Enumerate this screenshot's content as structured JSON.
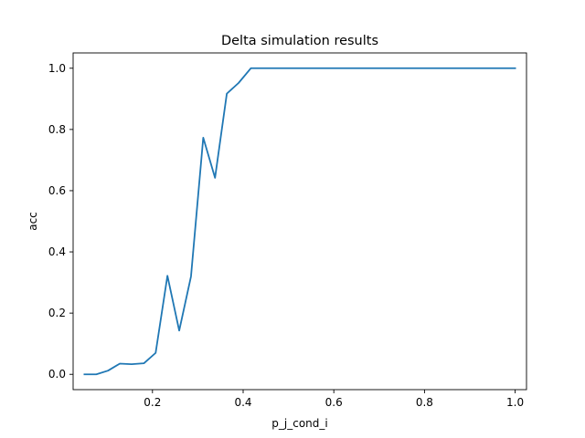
{
  "chart_data": {
    "type": "line",
    "title": "Delta simulation results",
    "xlabel": "p_j_cond_i",
    "ylabel": "acc",
    "xlim": [
      0.025,
      1.025
    ],
    "ylim": [
      -0.05,
      1.05
    ],
    "xticks": [
      0.2,
      0.4,
      0.6,
      0.8,
      1.0
    ],
    "xtick_labels": [
      "0.2",
      "0.4",
      "0.6",
      "0.8",
      "1.0"
    ],
    "yticks": [
      0.0,
      0.2,
      0.4,
      0.6,
      0.8,
      1.0
    ],
    "ytick_labels": [
      "0.0",
      "0.2",
      "0.4",
      "0.6",
      "0.8",
      "1.0"
    ],
    "grid": false,
    "line_color": "#1f77b4",
    "series": [
      {
        "x": [
          0.05,
          0.076,
          0.102,
          0.128,
          0.154,
          0.181,
          0.207,
          0.233,
          0.259,
          0.285,
          0.312,
          0.338,
          0.364,
          0.39,
          0.417,
          0.443,
          0.469,
          0.495,
          0.521,
          0.547,
          0.574,
          0.6,
          0.626,
          0.652,
          0.678,
          0.705,
          0.731,
          0.757,
          0.783,
          0.809,
          0.836,
          0.862,
          0.888,
          0.914,
          0.94,
          0.967,
          1.0
        ],
        "y": [
          0.0,
          0.0,
          0.012,
          0.035,
          0.033,
          0.036,
          0.07,
          0.322,
          0.143,
          0.32,
          0.773,
          0.642,
          0.917,
          0.952,
          1.0,
          1.0,
          1.0,
          1.0,
          1.0,
          1.0,
          1.0,
          1.0,
          1.0,
          1.0,
          1.0,
          1.0,
          1.0,
          1.0,
          1.0,
          1.0,
          1.0,
          1.0,
          1.0,
          1.0,
          1.0,
          1.0,
          1.0
        ]
      }
    ]
  }
}
